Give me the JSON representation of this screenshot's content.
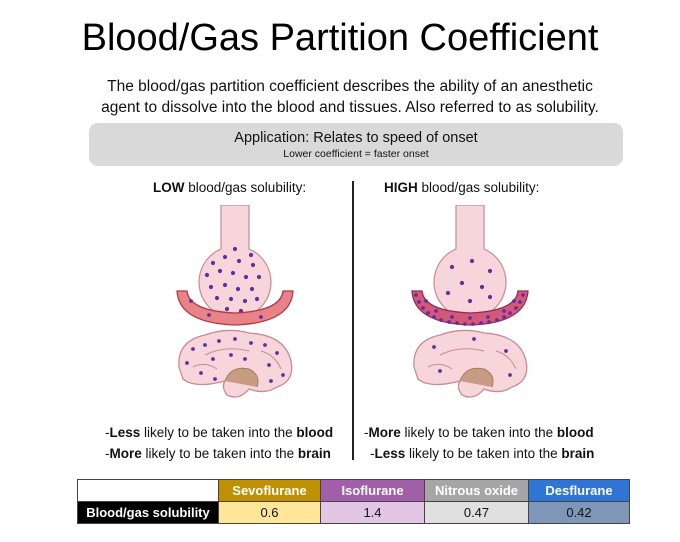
{
  "title": "Blood/Gas Partition Coefficient",
  "intro": {
    "line1": "The blood/gas partition coefficient describes the ability of an anesthetic",
    "line2": "agent to dissolve into the blood and tissues. Also referred to as solubility."
  },
  "application": {
    "main": "Application: Relates to speed of onset",
    "sub": "Lower coefficient = faster onset"
  },
  "low": {
    "heading_bold": "LOW",
    "heading_rest": " blood/gas solubility:",
    "line1_prefix": "-",
    "line1_bold": "Less",
    "line1_mid": " likely to be taken into the ",
    "line1_end": "blood",
    "line2_prefix": "-",
    "line2_bold": "More",
    "line2_mid": " likely to be taken into the ",
    "line2_end": "brain"
  },
  "high": {
    "heading_bold": "HIGH",
    "heading_rest": " blood/gas solubility:",
    "line1_prefix": "-",
    "line1_bold": "More",
    "line1_mid": " likely to be taken into the ",
    "line1_end": "blood",
    "line2_prefix": "-",
    "line2_bold": "Less",
    "line2_mid": " likely to be taken into the ",
    "line2_end": "brain"
  },
  "table": {
    "row_label": "Blood/gas solubility",
    "columns": [
      {
        "name": "Sevoflurane",
        "value": "0.6",
        "header_color": "#bf9000",
        "cell_color": "#ffe699"
      },
      {
        "name": "Isoflurane",
        "value": "1.4",
        "header_color": "#a05fa8",
        "cell_color": "#e3c6e6"
      },
      {
        "name": "Nitrous oxide",
        "value": "0.47",
        "header_color": "#a6a6a6",
        "cell_color": "#e0e0e0"
      },
      {
        "name": "Desflurane",
        "value": "0.42",
        "header_color": "#2f75d6",
        "cell_color": "#7e97b8"
      }
    ]
  },
  "colors": {
    "tissue_pink": "#f6d5db",
    "tissue_outline": "#c98a96",
    "blood_vessel": "#e8838a",
    "blood_vessel_outline": "#b03a44",
    "molecule": "#6a2aa0"
  }
}
